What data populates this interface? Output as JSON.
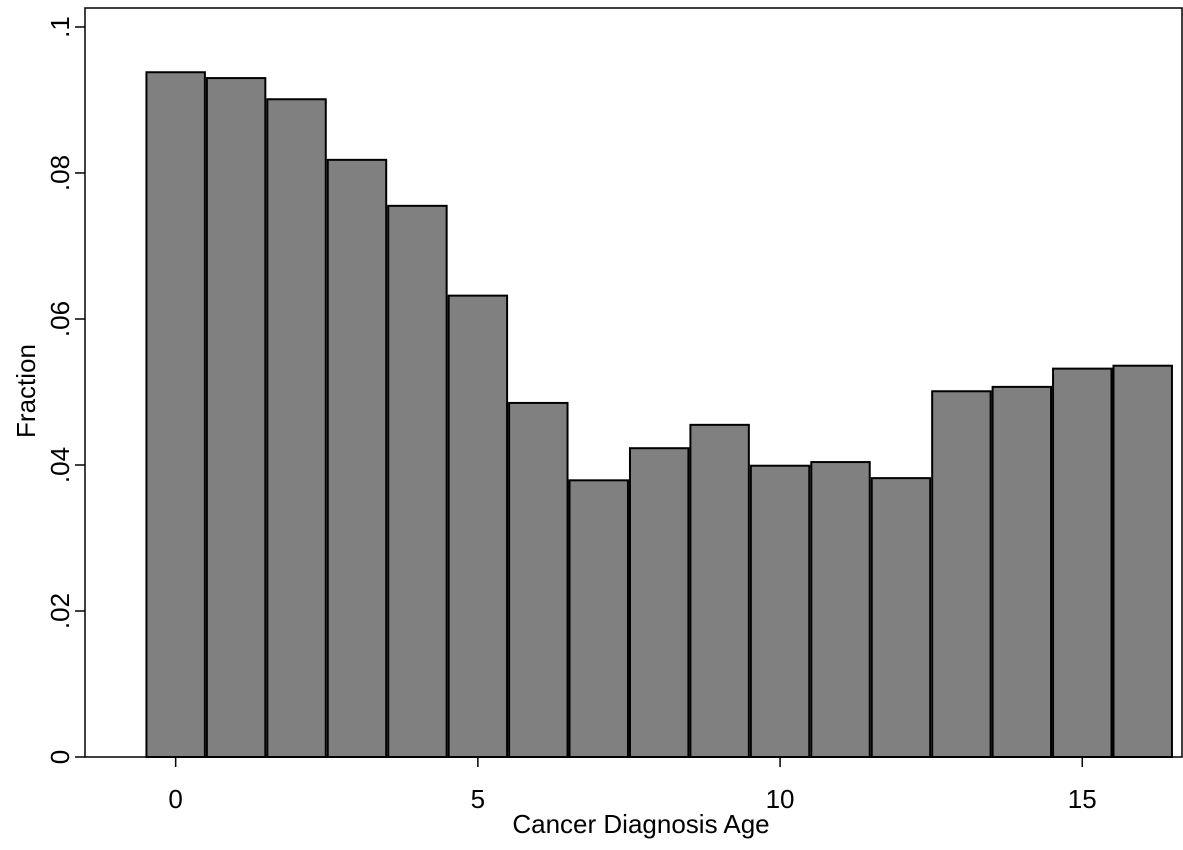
{
  "chart_data": {
    "type": "histogram",
    "x_label": "Cancer Diagnosis Age",
    "y_label": "Fraction",
    "bins": [
      -0.5,
      0.5,
      1.5,
      2.5,
      3.5,
      4.5,
      5.5,
      6.5,
      7.5,
      8.5,
      9.5,
      10.5,
      11.5,
      12.5,
      13.5,
      14.5,
      15.5,
      16.5
    ],
    "values": [
      0.0938,
      0.093,
      0.0901,
      0.0818,
      0.0755,
      0.0632,
      0.0485,
      0.0379,
      0.0423,
      0.0455,
      0.0399,
      0.0404,
      0.0382,
      0.0501,
      0.0507,
      0.0532,
      0.0536
    ],
    "color": "#808080",
    "xlim": [
      -1.5,
      16.65
    ],
    "ylim": [
      0,
      0.1026
    ],
    "xticks": [
      0,
      5,
      10,
      15
    ],
    "yticks": [
      0,
      {
        "value": 0.02,
        "label": ".02"
      },
      {
        "value": 0.04,
        "label": ".04"
      },
      {
        "value": 0.06,
        "label": ".06"
      },
      {
        "value": 0.08,
        "label": ".08"
      },
      {
        "value": 0.1,
        "label": ".1"
      }
    ],
    "grid": false
  }
}
